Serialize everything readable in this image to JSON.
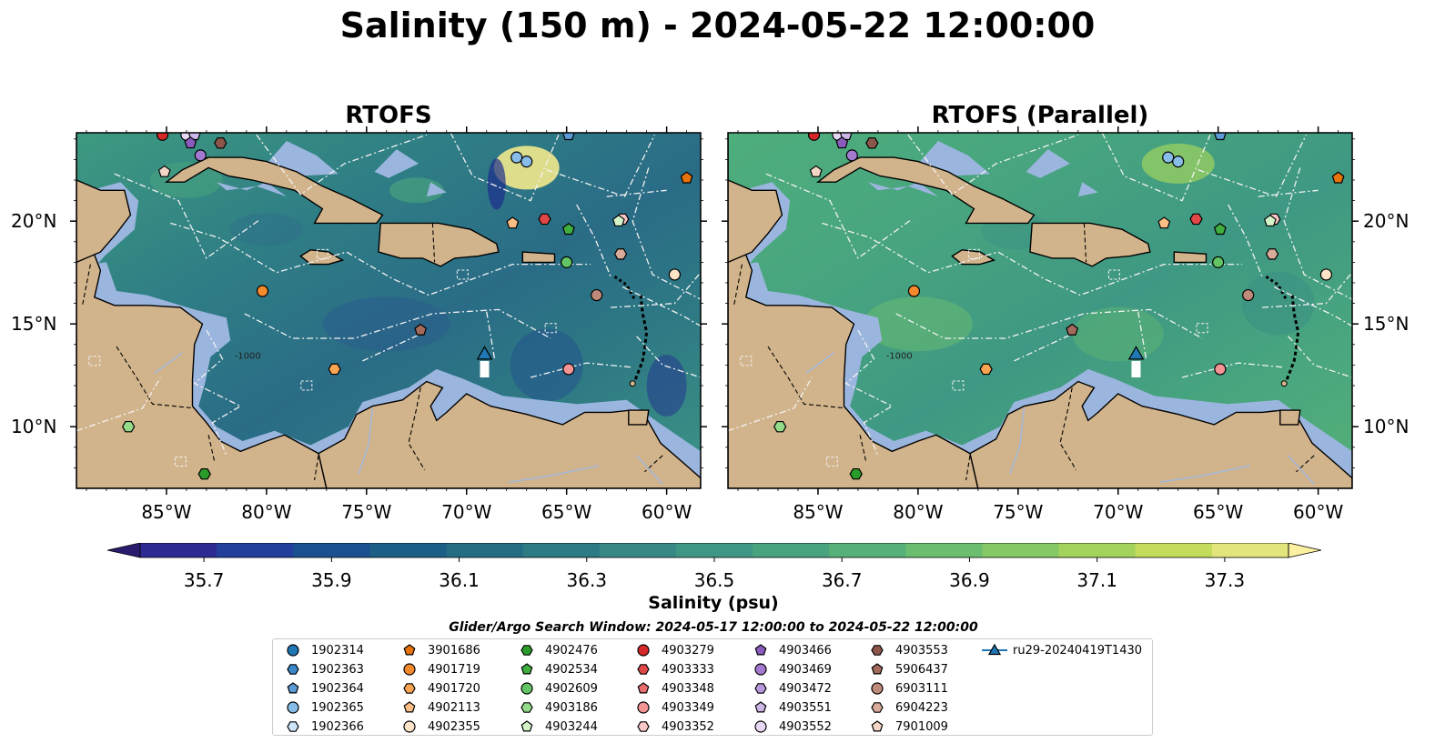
{
  "suptitle": "Salinity (150 m) - 2024-05-22 12:00:00",
  "panels": [
    {
      "title": "RTOFS"
    },
    {
      "title": "RTOFS (Parallel)"
    }
  ],
  "axes": {
    "lon_labels": [
      "85°W",
      "80°W",
      "75°W",
      "70°W",
      "65°W",
      "60°W"
    ],
    "lat_labels": [
      "20°N",
      "15°N",
      "10°N"
    ],
    "lon_range": [
      -89.5,
      -58.3
    ],
    "lat_range": [
      7.0,
      24.3
    ]
  },
  "isobath_label": "-1000",
  "colorbar": {
    "label": "Salinity (psu)",
    "range": [
      35.6,
      37.4
    ],
    "step": 0.1,
    "extend": "both",
    "colormap": "haline",
    "ticks": [
      "35.7",
      "35.9",
      "36.1",
      "36.3",
      "36.5",
      "36.7",
      "36.9",
      "37.1",
      "37.3"
    ],
    "colors": [
      "#2a1b6e",
      "#2d2b91",
      "#223f9c",
      "#1a5090",
      "#1c5f86",
      "#226d83",
      "#2c7a84",
      "#388885",
      "#3f9684",
      "#48a37f",
      "#57b078",
      "#6bbd6f",
      "#86c865",
      "#a3d25d",
      "#c4dc5c",
      "#e2e57c",
      "#fbf0a0"
    ]
  },
  "legend": {
    "title": "Glider/Argo Search Window: 2024-05-17 12:00:00 to 2024-05-22 12:00:00",
    "items": [
      {
        "label": "1902314",
        "marker": "circle",
        "color": "#1f77b4"
      },
      {
        "label": "1902363",
        "marker": "hexagon",
        "color": "#3a86c8"
      },
      {
        "label": "1902364",
        "marker": "pentagon",
        "color": "#5a9bd8"
      },
      {
        "label": "1902365",
        "marker": "circle",
        "color": "#87bde8"
      },
      {
        "label": "1902366",
        "marker": "hexagon",
        "color": "#cfe6f8"
      },
      {
        "label": "3901686",
        "marker": "pentagon",
        "color": "#e8720c"
      },
      {
        "label": "4901719",
        "marker": "circle",
        "color": "#f58a2c"
      },
      {
        "label": "4901720",
        "marker": "hexagon",
        "color": "#f8a452"
      },
      {
        "label": "4902113",
        "marker": "pentagon",
        "color": "#fbbf85"
      },
      {
        "label": "4902355",
        "marker": "circle",
        "color": "#fde3c8"
      },
      {
        "label": "4902476",
        "marker": "hexagon",
        "color": "#2a9c2a"
      },
      {
        "label": "4902534",
        "marker": "pentagon",
        "color": "#3fae3f"
      },
      {
        "label": "4902609",
        "marker": "circle",
        "color": "#62c462"
      },
      {
        "label": "4903186",
        "marker": "hexagon",
        "color": "#95dc8a"
      },
      {
        "label": "4903244",
        "marker": "pentagon",
        "color": "#d4f4c8"
      },
      {
        "label": "4903279",
        "marker": "circle",
        "color": "#d62728"
      },
      {
        "label": "4903333",
        "marker": "hexagon",
        "color": "#e04848"
      },
      {
        "label": "4903348",
        "marker": "pentagon",
        "color": "#ea6e6e"
      },
      {
        "label": "4903349",
        "marker": "circle",
        "color": "#f49494"
      },
      {
        "label": "4903352",
        "marker": "hexagon",
        "color": "#fbc8c8"
      },
      {
        "label": "4903466",
        "marker": "pentagon",
        "color": "#8a5bbd"
      },
      {
        "label": "4903469",
        "marker": "circle",
        "color": "#a37ad0"
      },
      {
        "label": "4903472",
        "marker": "hexagon",
        "color": "#b898dc"
      },
      {
        "label": "4903551",
        "marker": "pentagon",
        "color": "#cdb6e8"
      },
      {
        "label": "4903552",
        "marker": "circle",
        "color": "#e6d8f4"
      },
      {
        "label": "4903553",
        "marker": "hexagon",
        "color": "#8c564b"
      },
      {
        "label": "5906437",
        "marker": "pentagon",
        "color": "#a46a5c"
      },
      {
        "label": "6903111",
        "marker": "circle",
        "color": "#c08a7a"
      },
      {
        "label": "6904223",
        "marker": "hexagon",
        "color": "#d8ab9a"
      },
      {
        "label": "7901009",
        "marker": "pentagon",
        "color": "#f4d6c8"
      },
      {
        "label": "ru29-20240419T1430",
        "marker": "triangle-line",
        "color": "#1f77b4"
      }
    ]
  },
  "floats": [
    {
      "id": "4903279",
      "lon": -85.2,
      "lat": 24.2
    },
    {
      "id": "4903552",
      "lon": -84.0,
      "lat": 24.2
    },
    {
      "id": "4903551",
      "lon": -83.6,
      "lat": 24.2
    },
    {
      "id": "4903466",
      "lon": -83.8,
      "lat": 23.8
    },
    {
      "id": "4903553",
      "lon": -82.3,
      "lat": 23.8
    },
    {
      "id": "4903469",
      "lon": -83.3,
      "lat": 23.2
    },
    {
      "id": "7901009",
      "lon": -85.1,
      "lat": 22.4
    },
    {
      "id": "1902365",
      "lon": -67.5,
      "lat": 23.1
    },
    {
      "id": "1902365",
      "lon": -67.0,
      "lat": 22.9
    },
    {
      "id": "1902364",
      "lon": -64.9,
      "lat": 24.2
    },
    {
      "id": "3901686",
      "lon": -59.0,
      "lat": 22.1
    },
    {
      "id": "4902113",
      "lon": -67.7,
      "lat": 19.9
    },
    {
      "id": "4903333",
      "lon": -66.1,
      "lat": 20.1
    },
    {
      "id": "4902534",
      "lon": -64.9,
      "lat": 19.6
    },
    {
      "id": "4903352",
      "lon": -62.2,
      "lat": 20.1
    },
    {
      "id": "4903244",
      "lon": -62.4,
      "lat": 20.0
    },
    {
      "id": "6904223",
      "lon": -62.3,
      "lat": 18.4
    },
    {
      "id": "4902609",
      "lon": -65.0,
      "lat": 18.0
    },
    {
      "id": "4902355",
      "lon": -59.6,
      "lat": 17.4
    },
    {
      "id": "6903111",
      "lon": -63.5,
      "lat": 16.4
    },
    {
      "id": "4901719",
      "lon": -80.2,
      "lat": 16.6
    },
    {
      "id": "5906437",
      "lon": -72.3,
      "lat": 14.7
    },
    {
      "id": "4901720",
      "lon": -76.6,
      "lat": 12.8
    },
    {
      "id": "4903349",
      "lon": -64.9,
      "lat": 12.8
    },
    {
      "id": "4903186",
      "lon": -86.9,
      "lat": 10.0
    },
    {
      "id": "4902476",
      "lon": -83.1,
      "lat": 7.7
    }
  ],
  "glider": {
    "id": "ru29-20240419T1430",
    "lon": -69.1,
    "lat": 13.4
  }
}
